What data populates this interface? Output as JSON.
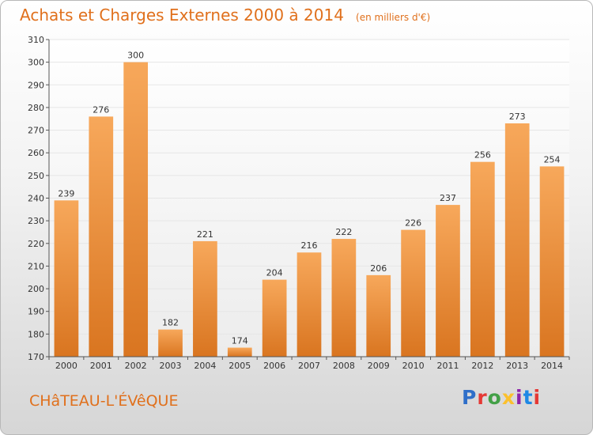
{
  "page": {
    "title": "Achats et Charges Externes 2000 à 2014",
    "subtitle": "(en milliers d'€)",
    "commune": "CHâTEAU-L'ÉVêQUE"
  },
  "logo": {
    "text": "Proxiti",
    "letters": [
      {
        "ch": "P",
        "color": "#2f6fc9"
      },
      {
        "ch": "r",
        "color": "#e53935"
      },
      {
        "ch": "o",
        "color": "#43a047"
      },
      {
        "ch": "x",
        "color": "#fbc02d"
      },
      {
        "ch": "i",
        "color": "#8e24aa"
      },
      {
        "ch": "t",
        "color": "#1e88e5"
      },
      {
        "ch": "i",
        "color": "#e53935"
      }
    ]
  },
  "colors": {
    "title": "#e0701c",
    "bar_top": "#f7a85b",
    "bar_bottom": "#d97520",
    "grid": "#e6e6e6",
    "axis": "#555555"
  },
  "chart_data": {
    "type": "bar",
    "title": "Achats et Charges Externes 2000 à 2014",
    "subtitle": "(en milliers d'€)",
    "categories": [
      "2000",
      "2001",
      "2002",
      "2003",
      "2004",
      "2005",
      "2006",
      "2007",
      "2008",
      "2009",
      "2010",
      "2011",
      "2012",
      "2013",
      "2014"
    ],
    "values": [
      239,
      276,
      300,
      182,
      221,
      174,
      204,
      216,
      222,
      206,
      226,
      237,
      256,
      273,
      254
    ],
    "ylim": [
      170,
      310
    ],
    "yticks": [
      170,
      180,
      190,
      200,
      210,
      220,
      230,
      240,
      250,
      260,
      270,
      280,
      290,
      300,
      310
    ],
    "grid": true,
    "data_labels": true,
    "xlabel": "",
    "ylabel": ""
  }
}
